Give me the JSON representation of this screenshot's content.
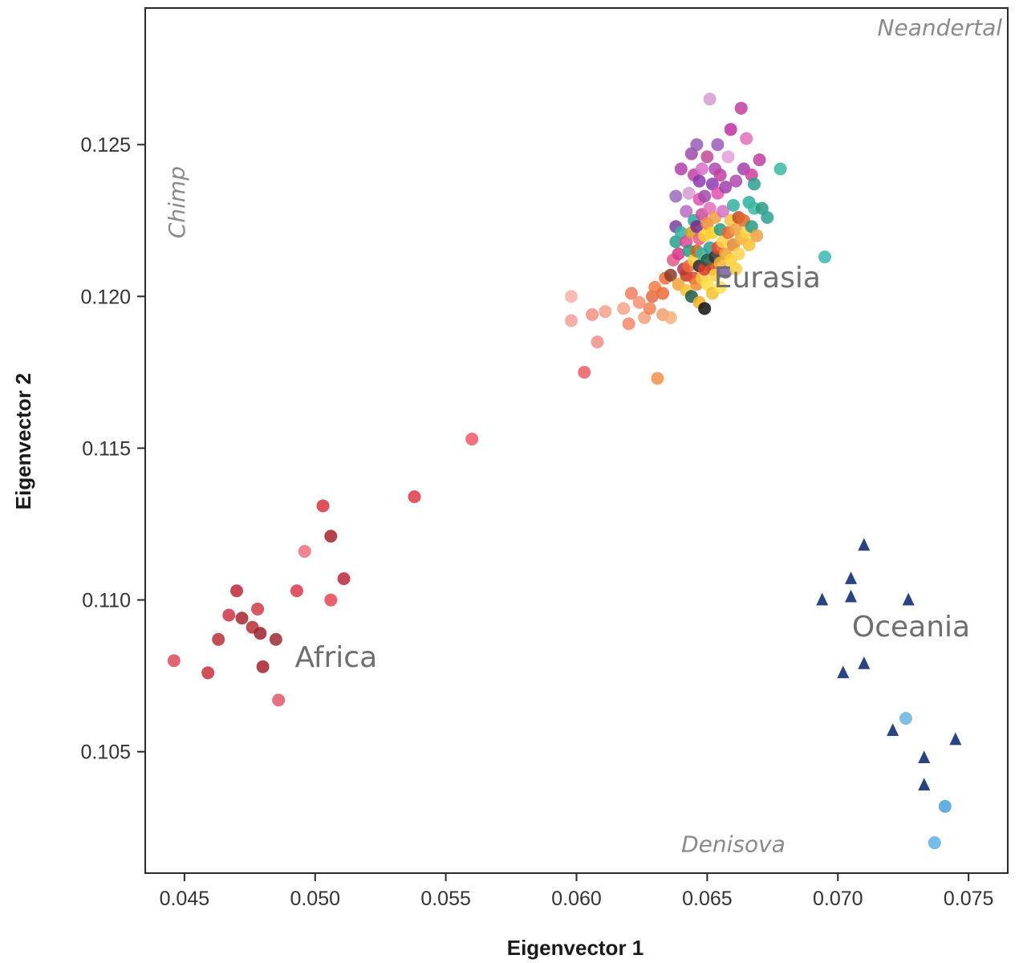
{
  "chart_data": {
    "type": "scatter",
    "title": "",
    "xlabel": "Eigenvector 1",
    "ylabel": "Eigenvector 2",
    "xlim": [
      0.0435,
      0.0765
    ],
    "ylim": [
      0.101,
      0.1295
    ],
    "x_ticks": [
      "0.045",
      "0.050",
      "0.055",
      "0.060",
      "0.065",
      "0.070",
      "0.075"
    ],
    "x_tick_values": [
      0.045,
      0.05,
      0.055,
      0.06,
      0.065,
      0.07,
      0.075
    ],
    "y_ticks": [
      "0.105",
      "0.110",
      "0.115",
      "0.120",
      "0.125"
    ],
    "y_tick_values": [
      0.105,
      0.11,
      0.115,
      0.12,
      0.125
    ],
    "grid": false,
    "legend": "none",
    "region_labels": [
      {
        "text": "Eurasia",
        "x": 0.0673,
        "y": 0.1203
      },
      {
        "text": "Africa",
        "x": 0.0508,
        "y": 0.1078
      },
      {
        "text": "Oceania",
        "x": 0.0728,
        "y": 0.1088
      }
    ],
    "reference_labels": [
      {
        "text": "Neandertal",
        "x": 0.0739,
        "y": 0.1286
      },
      {
        "text": "Chimp",
        "x": 0.045,
        "y": 0.1231,
        "rotate": true
      },
      {
        "text": "Denisova",
        "x": 0.066,
        "y": 0.1017
      }
    ],
    "series": [
      {
        "marker": "circle",
        "points": [
          {
            "x": 0.0446,
            "y": 0.108,
            "c": "#dc4a5c"
          },
          {
            "x": 0.0459,
            "y": 0.1076,
            "c": "#c9303c"
          },
          {
            "x": 0.0463,
            "y": 0.1087,
            "c": "#b93038"
          },
          {
            "x": 0.0467,
            "y": 0.1095,
            "c": "#cc3344"
          },
          {
            "x": 0.047,
            "y": 0.1103,
            "c": "#c0283a"
          },
          {
            "x": 0.0472,
            "y": 0.1094,
            "c": "#a3262f"
          },
          {
            "x": 0.0476,
            "y": 0.1091,
            "c": "#b52e36"
          },
          {
            "x": 0.0478,
            "y": 0.1097,
            "c": "#d03a48"
          },
          {
            "x": 0.0479,
            "y": 0.1089,
            "c": "#9a2230"
          },
          {
            "x": 0.048,
            "y": 0.1078,
            "c": "#a6212d"
          },
          {
            "x": 0.0485,
            "y": 0.1087,
            "c": "#9e2a35"
          },
          {
            "x": 0.0486,
            "y": 0.1067,
            "c": "#e0586a"
          },
          {
            "x": 0.0493,
            "y": 0.1103,
            "c": "#d93a4c"
          },
          {
            "x": 0.0496,
            "y": 0.1116,
            "c": "#ef6f80"
          },
          {
            "x": 0.0503,
            "y": 0.1131,
            "c": "#d8313f"
          },
          {
            "x": 0.0506,
            "y": 0.1121,
            "c": "#a8222c"
          },
          {
            "x": 0.0506,
            "y": 0.11,
            "c": "#e34556"
          },
          {
            "x": 0.0511,
            "y": 0.1107,
            "c": "#b8283a"
          },
          {
            "x": 0.0538,
            "y": 0.1134,
            "c": "#dd3a48"
          },
          {
            "x": 0.056,
            "y": 0.1153,
            "c": "#f05868"
          },
          {
            "x": 0.0598,
            "y": 0.12,
            "c": "#f7b0a8"
          },
          {
            "x": 0.0598,
            "y": 0.1192,
            "c": "#f4a09a"
          },
          {
            "x": 0.0603,
            "y": 0.1175,
            "c": "#ec5c64"
          },
          {
            "x": 0.0606,
            "y": 0.1194,
            "c": "#f09085"
          },
          {
            "x": 0.0608,
            "y": 0.1185,
            "c": "#f28e8a"
          },
          {
            "x": 0.0611,
            "y": 0.1195,
            "c": "#f5a08c"
          },
          {
            "x": 0.0618,
            "y": 0.1196,
            "c": "#f7a488"
          },
          {
            "x": 0.062,
            "y": 0.1191,
            "c": "#f3876a"
          },
          {
            "x": 0.0621,
            "y": 0.1201,
            "c": "#ee7f5e"
          },
          {
            "x": 0.0624,
            "y": 0.1198,
            "c": "#f29070"
          },
          {
            "x": 0.0626,
            "y": 0.1193,
            "c": "#f5a07e"
          },
          {
            "x": 0.0628,
            "y": 0.1196,
            "c": "#ef8456"
          },
          {
            "x": 0.0629,
            "y": 0.12,
            "c": "#e86a42"
          },
          {
            "x": 0.063,
            "y": 0.1203,
            "c": "#f37a4a"
          },
          {
            "x": 0.0631,
            "y": 0.1173,
            "c": "#f18f4c"
          },
          {
            "x": 0.0633,
            "y": 0.1201,
            "c": "#ed6a3a"
          },
          {
            "x": 0.0633,
            "y": 0.1194,
            "c": "#f2a070"
          },
          {
            "x": 0.0634,
            "y": 0.1206,
            "c": "#f06a3a"
          },
          {
            "x": 0.0636,
            "y": 0.1193,
            "c": "#f7b07a"
          },
          {
            "x": 0.0636,
            "y": 0.1207,
            "c": "#8a3a28"
          },
          {
            "x": 0.0637,
            "y": 0.1212,
            "c": "#e25a8a"
          },
          {
            "x": 0.0638,
            "y": 0.1218,
            "c": "#2aa08a"
          },
          {
            "x": 0.0638,
            "y": 0.1223,
            "c": "#7b3f9e"
          },
          {
            "x": 0.0638,
            "y": 0.1233,
            "c": "#9a6ab8"
          },
          {
            "x": 0.0639,
            "y": 0.1204,
            "c": "#f0a23a"
          },
          {
            "x": 0.0639,
            "y": 0.1214,
            "c": "#d7338a"
          },
          {
            "x": 0.064,
            "y": 0.1221,
            "c": "#36b0a0"
          },
          {
            "x": 0.064,
            "y": 0.1242,
            "c": "#b040a8"
          },
          {
            "x": 0.0641,
            "y": 0.1209,
            "c": "#b0324a"
          },
          {
            "x": 0.0642,
            "y": 0.1202,
            "c": "#f4c030"
          },
          {
            "x": 0.0642,
            "y": 0.1207,
            "c": "#c03a1e"
          },
          {
            "x": 0.0642,
            "y": 0.1218,
            "c": "#e0439a"
          },
          {
            "x": 0.0642,
            "y": 0.1228,
            "c": "#bb6ac8"
          },
          {
            "x": 0.0643,
            "y": 0.1215,
            "c": "#2a9a82"
          },
          {
            "x": 0.0643,
            "y": 0.121,
            "c": "#f06a3a"
          },
          {
            "x": 0.0643,
            "y": 0.1234,
            "c": "#d79ad0"
          },
          {
            "x": 0.0644,
            "y": 0.12,
            "c": "#1a5a4a"
          },
          {
            "x": 0.0644,
            "y": 0.1221,
            "c": "#d4a020"
          },
          {
            "x": 0.0644,
            "y": 0.1247,
            "c": "#a04aa8"
          },
          {
            "x": 0.0645,
            "y": 0.1206,
            "c": "#e8452a"
          },
          {
            "x": 0.0645,
            "y": 0.1212,
            "c": "#ffd040"
          },
          {
            "x": 0.0645,
            "y": 0.1225,
            "c": "#2aa894"
          },
          {
            "x": 0.0645,
            "y": 0.124,
            "c": "#c040a0"
          },
          {
            "x": 0.0646,
            "y": 0.1215,
            "c": "#c06a20"
          },
          {
            "x": 0.0646,
            "y": 0.1204,
            "c": "#f08a3a"
          },
          {
            "x": 0.0646,
            "y": 0.1223,
            "c": "#7a2a88"
          },
          {
            "x": 0.0646,
            "y": 0.125,
            "c": "#9a5ab8"
          },
          {
            "x": 0.0647,
            "y": 0.121,
            "c": "#2a2a2a"
          },
          {
            "x": 0.0647,
            "y": 0.1198,
            "c": "#f4b020"
          },
          {
            "x": 0.0647,
            "y": 0.1219,
            "c": "#e85a8a"
          },
          {
            "x": 0.0647,
            "y": 0.1232,
            "c": "#e050b0"
          },
          {
            "x": 0.0647,
            "y": 0.1238,
            "c": "#8a3ab0"
          },
          {
            "x": 0.0648,
            "y": 0.1206,
            "c": "#f7c840"
          },
          {
            "x": 0.0648,
            "y": 0.1214,
            "c": "#3ab8a0"
          },
          {
            "x": 0.0648,
            "y": 0.1227,
            "c": "#c94a9a"
          },
          {
            "x": 0.0648,
            "y": 0.1242,
            "c": "#d770c8"
          },
          {
            "x": 0.0649,
            "y": 0.1196,
            "c": "#101010"
          },
          {
            "x": 0.0649,
            "y": 0.1209,
            "c": "#e03a2a"
          },
          {
            "x": 0.0649,
            "y": 0.122,
            "c": "#ffd030"
          },
          {
            "x": 0.0649,
            "y": 0.1233,
            "c": "#a64aa8"
          },
          {
            "x": 0.065,
            "y": 0.1212,
            "c": "#1e5a48"
          },
          {
            "x": 0.065,
            "y": 0.1204,
            "c": "#ffe040"
          },
          {
            "x": 0.065,
            "y": 0.1224,
            "c": "#f08a3a"
          },
          {
            "x": 0.065,
            "y": 0.1246,
            "c": "#c04a9a"
          },
          {
            "x": 0.0651,
            "y": 0.1265,
            "c": "#d79ad0"
          },
          {
            "x": 0.0651,
            "y": 0.1216,
            "c": "#2aa090"
          },
          {
            "x": 0.0651,
            "y": 0.1229,
            "c": "#e070b8"
          },
          {
            "x": 0.0652,
            "y": 0.1201,
            "c": "#f4c030"
          },
          {
            "x": 0.0652,
            "y": 0.1209,
            "c": "#c84a20"
          },
          {
            "x": 0.0652,
            "y": 0.1221,
            "c": "#ffcf20"
          },
          {
            "x": 0.0652,
            "y": 0.1237,
            "c": "#8a3ab0"
          },
          {
            "x": 0.0653,
            "y": 0.1213,
            "c": "#303030"
          },
          {
            "x": 0.0653,
            "y": 0.1207,
            "c": "#ffd040"
          },
          {
            "x": 0.0653,
            "y": 0.1226,
            "c": "#f0a040"
          },
          {
            "x": 0.0653,
            "y": 0.1242,
            "c": "#b048b0"
          },
          {
            "x": 0.0654,
            "y": 0.1216,
            "c": "#e84a2a"
          },
          {
            "x": 0.0654,
            "y": 0.1234,
            "c": "#e050b0"
          },
          {
            "x": 0.0654,
            "y": 0.125,
            "c": "#9a5ab8"
          },
          {
            "x": 0.0655,
            "y": 0.1203,
            "c": "#f7e050"
          },
          {
            "x": 0.0655,
            "y": 0.1211,
            "c": "#f4b030"
          },
          {
            "x": 0.0655,
            "y": 0.1222,
            "c": "#2a9a82"
          },
          {
            "x": 0.0655,
            "y": 0.124,
            "c": "#c040a0"
          },
          {
            "x": 0.0656,
            "y": 0.1218,
            "c": "#ffd040"
          },
          {
            "x": 0.0656,
            "y": 0.1228,
            "c": "#d770c8"
          },
          {
            "x": 0.0657,
            "y": 0.1208,
            "c": "#7a5aa8"
          },
          {
            "x": 0.0657,
            "y": 0.1214,
            "c": "#f0a030"
          },
          {
            "x": 0.0657,
            "y": 0.1236,
            "c": "#a040a8"
          },
          {
            "x": 0.0658,
            "y": 0.1221,
            "c": "#e86a2a"
          },
          {
            "x": 0.0658,
            "y": 0.1246,
            "c": "#e0a0d8"
          },
          {
            "x": 0.0659,
            "y": 0.1212,
            "c": "#ffd030"
          },
          {
            "x": 0.0659,
            "y": 0.1225,
            "c": "#f4c040"
          },
          {
            "x": 0.0659,
            "y": 0.1255,
            "c": "#c030a0"
          },
          {
            "x": 0.066,
            "y": 0.1217,
            "c": "#e08a30"
          },
          {
            "x": 0.066,
            "y": 0.123,
            "c": "#36b0a0"
          },
          {
            "x": 0.0661,
            "y": 0.1209,
            "c": "#f7d040"
          },
          {
            "x": 0.0661,
            "y": 0.1222,
            "c": "#f0a040"
          },
          {
            "x": 0.0661,
            "y": 0.1238,
            "c": "#b048b0"
          },
          {
            "x": 0.0662,
            "y": 0.1226,
            "c": "#c84a20"
          },
          {
            "x": 0.0662,
            "y": 0.1214,
            "c": "#ffd050"
          },
          {
            "x": 0.0663,
            "y": 0.1219,
            "c": "#f4b030"
          },
          {
            "x": 0.0663,
            "y": 0.1262,
            "c": "#c040a0"
          },
          {
            "x": 0.0664,
            "y": 0.1242,
            "c": "#a040a8"
          },
          {
            "x": 0.0664,
            "y": 0.1225,
            "c": "#e06a2a"
          },
          {
            "x": 0.0665,
            "y": 0.1221,
            "c": "#ffd040"
          },
          {
            "x": 0.0665,
            "y": 0.1252,
            "c": "#e070b8"
          },
          {
            "x": 0.0666,
            "y": 0.1231,
            "c": "#2ab0a0"
          },
          {
            "x": 0.0666,
            "y": 0.1217,
            "c": "#f4c030"
          },
          {
            "x": 0.0667,
            "y": 0.124,
            "c": "#d040a0"
          },
          {
            "x": 0.0667,
            "y": 0.1223,
            "c": "#2a9a82"
          },
          {
            "x": 0.0668,
            "y": 0.1229,
            "c": "#3ab8a0"
          },
          {
            "x": 0.0668,
            "y": 0.1237,
            "c": "#2aa090"
          },
          {
            "x": 0.0669,
            "y": 0.122,
            "c": "#f0a040"
          },
          {
            "x": 0.067,
            "y": 0.1245,
            "c": "#c040a0"
          },
          {
            "x": 0.0671,
            "y": 0.1229,
            "c": "#2a9a82"
          },
          {
            "x": 0.0673,
            "y": 0.1226,
            "c": "#2aa090"
          },
          {
            "x": 0.0678,
            "y": 0.1242,
            "c": "#3ab8a0"
          },
          {
            "x": 0.0695,
            "y": 0.1213,
            "c": "#3ab8b0"
          },
          {
            "x": 0.0726,
            "y": 0.1061,
            "c": "#6ab4e0"
          },
          {
            "x": 0.0737,
            "y": 0.102,
            "c": "#5ab0e8"
          },
          {
            "x": 0.0741,
            "y": 0.1032,
            "c": "#4aa0dc"
          }
        ]
      },
      {
        "marker": "triangle",
        "points": [
          {
            "x": 0.0694,
            "y": 0.11,
            "c": "#1f3a7a"
          },
          {
            "x": 0.0702,
            "y": 0.1076,
            "c": "#1f3a7a"
          },
          {
            "x": 0.0705,
            "y": 0.1107,
            "c": "#1f3a7a"
          },
          {
            "x": 0.0705,
            "y": 0.1101,
            "c": "#1f3a7a"
          },
          {
            "x": 0.071,
            "y": 0.1118,
            "c": "#1f3a7a"
          },
          {
            "x": 0.071,
            "y": 0.1079,
            "c": "#1f3a7a"
          },
          {
            "x": 0.0721,
            "y": 0.1057,
            "c": "#1f3a7a"
          },
          {
            "x": 0.0727,
            "y": 0.11,
            "c": "#1f3a7a"
          },
          {
            "x": 0.0733,
            "y": 0.1048,
            "c": "#1f3a7a"
          },
          {
            "x": 0.0733,
            "y": 0.1039,
            "c": "#1f3a7a"
          },
          {
            "x": 0.0745,
            "y": 0.1054,
            "c": "#1f3a7a"
          }
        ]
      }
    ]
  }
}
